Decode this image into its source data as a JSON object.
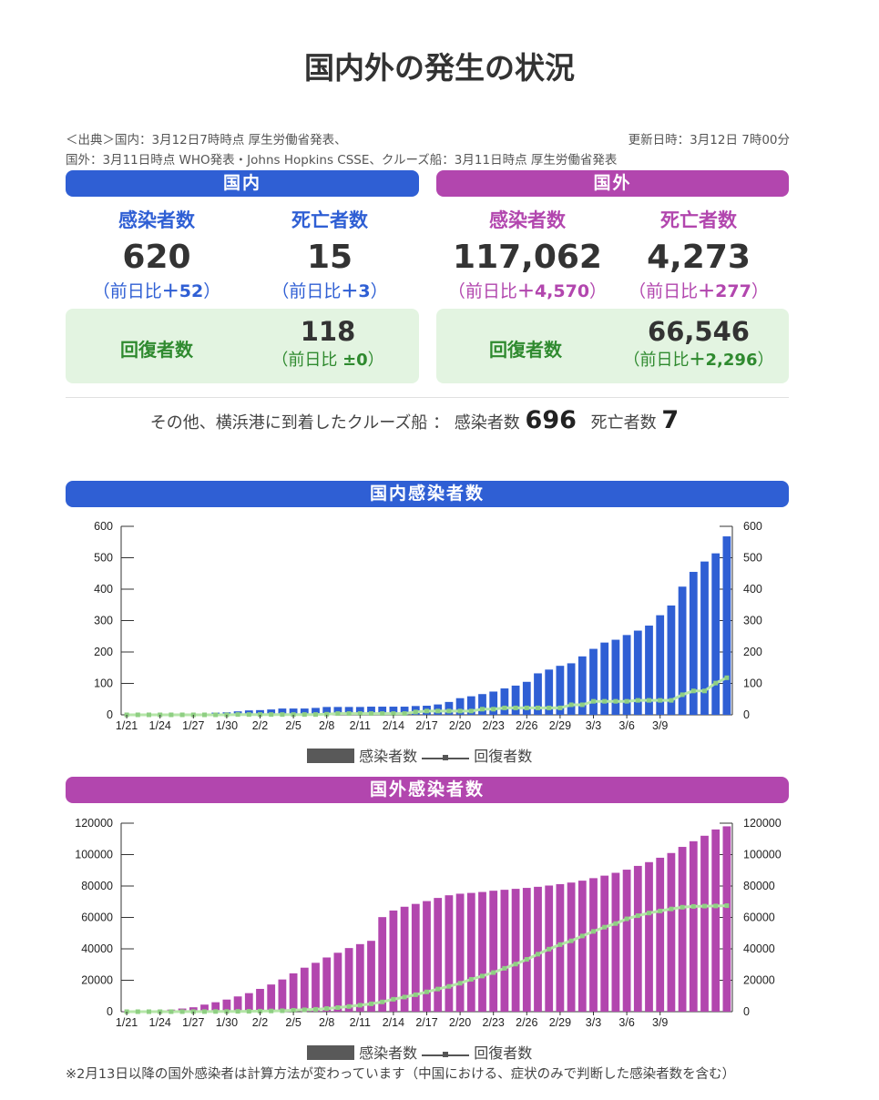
{
  "title": "国内外の発生の状況",
  "source": {
    "line1": "＜出典＞国内：3月12日7時時点 厚生労働省発表、",
    "updated": "更新日時：3月12日 7時00分",
    "line2": "国外：3月11日時点 WHO発表・Johns Hopkins CSSE、クルーズ船：3月11日時点 厚生労働省発表"
  },
  "domestic": {
    "header": "国内",
    "infected_label": "感染者数",
    "infected": "620",
    "infected_diff_prefix": "（前日比",
    "infected_diff": "＋52",
    "infected_diff_suffix": "）",
    "deaths_label": "死亡者数",
    "deaths": "15",
    "deaths_diff_prefix": "（前日比",
    "deaths_diff": "＋3",
    "deaths_diff_suffix": "）",
    "recovered_label": "回復者数",
    "recovered": "118",
    "recovered_diff_prefix": "（前日比 ",
    "recovered_diff": "±0",
    "recovered_diff_suffix": "）"
  },
  "overseas": {
    "header": "国外",
    "infected_label": "感染者数",
    "infected": "117,062",
    "infected_diff_prefix": "（前日比",
    "infected_diff": "＋4,570",
    "infected_diff_suffix": "）",
    "deaths_label": "死亡者数",
    "deaths": "4,273",
    "deaths_diff_prefix": "（前日比",
    "deaths_diff": "＋277",
    "deaths_diff_suffix": "）",
    "recovered_label": "回復者数",
    "recovered": "66,546",
    "recovered_diff_prefix": "（前日比",
    "recovered_diff": "＋2,296",
    "recovered_diff_suffix": "）"
  },
  "cruise": {
    "text": "その他、横浜港に到着したクルーズ船 ： 感染者数",
    "infected": "696",
    "deaths_label": "死亡者数",
    "deaths": "7"
  },
  "legend": {
    "bar": "感染者数",
    "line": "回復者数"
  },
  "note": "※2月13日以降の国外感染者は計算方法が変わっています（中国における、症状のみで判断した感染者数を含む）",
  "colors": {
    "domestic": "#2f5fd4",
    "overseas": "#b246ae",
    "recovered": "#b5e6a8",
    "recovered_edge": "#8fcf83"
  },
  "chart_data": [
    {
      "type": "bar",
      "title": "国内感染者数",
      "xlabels": [
        "1/21",
        "1/24",
        "1/27",
        "1/30",
        "2/2",
        "2/5",
        "2/8",
        "2/11",
        "2/14",
        "2/17",
        "2/20",
        "2/23",
        "2/26",
        "2/29",
        "3/3",
        "3/6",
        "3/9"
      ],
      "ylim": [
        0,
        600
      ],
      "yticks": [
        0,
        100,
        200,
        300,
        400,
        500,
        600
      ],
      "series": [
        {
          "name": "感染者数",
          "type": "bar",
          "values": [
            0,
            0,
            1,
            1,
            2,
            3,
            4,
            4,
            7,
            8,
            11,
            14,
            15,
            17,
            20,
            20,
            20,
            22,
            25,
            25,
            25,
            25,
            26,
            26,
            26,
            26,
            28,
            29,
            33,
            41,
            53,
            59,
            66,
            74,
            84,
            93,
            105,
            132,
            144,
            156,
            164,
            186,
            210,
            230,
            239,
            254,
            268,
            284,
            317,
            348,
            408,
            455,
            488,
            514,
            568
          ]
        },
        {
          "name": "回復者数",
          "type": "line",
          "values": [
            0,
            0,
            0,
            0,
            0,
            0,
            0,
            0,
            0,
            0,
            1,
            1,
            1,
            1,
            1,
            1,
            1,
            1,
            2,
            4,
            4,
            4,
            4,
            4,
            4,
            4,
            9,
            12,
            12,
            12,
            12,
            12,
            18,
            18,
            22,
            22,
            22,
            22,
            22,
            22,
            32,
            32,
            43,
            43,
            43,
            43,
            46,
            46,
            46,
            46,
            64,
            76,
            76,
            101,
            118
          ]
        }
      ]
    },
    {
      "type": "bar",
      "title": "国外感染者数",
      "xlabels": [
        "1/21",
        "1/24",
        "1/27",
        "1/30",
        "2/2",
        "2/5",
        "2/8",
        "2/11",
        "2/14",
        "2/17",
        "2/20",
        "2/23",
        "2/26",
        "2/29",
        "3/3",
        "3/6",
        "3/9"
      ],
      "ylim": [
        0,
        120000
      ],
      "yticks": [
        0,
        20000,
        40000,
        60000,
        80000,
        100000,
        120000
      ],
      "series": [
        {
          "name": "感染者数",
          "type": "bar",
          "values": [
            300,
            550,
            600,
            900,
            1300,
            2000,
            2800,
            4500,
            6000,
            7700,
            9700,
            11800,
            14500,
            17300,
            20500,
            24400,
            28000,
            31100,
            34500,
            37500,
            40500,
            43000,
            45100,
            60200,
            64400,
            66800,
            68600,
            70400,
            72400,
            74100,
            75100,
            75600,
            76200,
            77000,
            77600,
            78200,
            78800,
            79500,
            80300,
            81200,
            82200,
            83400,
            85000,
            86600,
            88400,
            90400,
            92800,
            95200,
            98000,
            101000,
            104900,
            108500,
            112000,
            116000,
            118000
          ]
        },
        {
          "name": "回復者数",
          "type": "line",
          "values": [
            0,
            0,
            0,
            0,
            20,
            30,
            50,
            60,
            120,
            130,
            200,
            240,
            330,
            460,
            600,
            900,
            1200,
            1500,
            2000,
            2600,
            3300,
            4100,
            5000,
            6200,
            7900,
            9300,
            10800,
            12600,
            14400,
            16100,
            18100,
            20600,
            22700,
            24900,
            27600,
            30300,
            33300,
            36600,
            39800,
            42700,
            45100,
            48200,
            51100,
            53800,
            56100,
            59100,
            61100,
            62800,
            64100,
            65400,
            66500,
            67000,
            67200,
            67300,
            67500
          ]
        }
      ]
    }
  ]
}
